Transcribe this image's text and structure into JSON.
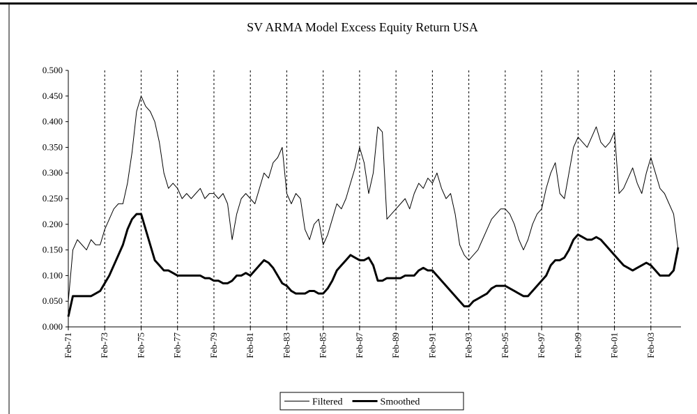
{
  "chart_data": {
    "type": "line",
    "title": "SV ARMA Model Excess Equity Return USA",
    "categories": [
      "Feb-71",
      null,
      null,
      null,
      null,
      null,
      null,
      null,
      "Feb-73",
      null,
      null,
      null,
      null,
      null,
      null,
      null,
      "Feb-75",
      null,
      null,
      null,
      null,
      null,
      null,
      null,
      "Feb-77",
      null,
      null,
      null,
      null,
      null,
      null,
      null,
      "Feb-79",
      null,
      null,
      null,
      null,
      null,
      null,
      null,
      "Feb-81",
      null,
      null,
      null,
      null,
      null,
      null,
      null,
      "Feb-83",
      null,
      null,
      null,
      null,
      null,
      null,
      null,
      "Feb-85",
      null,
      null,
      null,
      null,
      null,
      null,
      null,
      "Feb-87",
      null,
      null,
      null,
      null,
      null,
      null,
      null,
      "Feb-89",
      null,
      null,
      null,
      null,
      null,
      null,
      null,
      "Feb-91",
      null,
      null,
      null,
      null,
      null,
      null,
      null,
      "Feb-93",
      null,
      null,
      null,
      null,
      null,
      null,
      null,
      "Feb-95",
      null,
      null,
      null,
      null,
      null,
      null,
      null,
      "Feb-97",
      null,
      null,
      null,
      null,
      null,
      null,
      null,
      "Feb-99",
      null,
      null,
      null,
      null,
      null,
      null,
      null,
      "Feb-01",
      null,
      null,
      null,
      null,
      null,
      null,
      null,
      "Feb-03",
      null,
      null,
      null,
      null,
      null,
      null
    ],
    "series": [
      {
        "name": "Filtered",
        "color": "#000000",
        "width": 1,
        "values": [
          0.05,
          0.15,
          0.17,
          0.16,
          0.15,
          0.17,
          0.16,
          0.16,
          0.19,
          0.21,
          0.23,
          0.24,
          0.24,
          0.28,
          0.34,
          0.42,
          0.45,
          0.43,
          0.42,
          0.4,
          0.36,
          0.3,
          0.27,
          0.28,
          0.27,
          0.25,
          0.26,
          0.25,
          0.26,
          0.27,
          0.25,
          0.26,
          0.26,
          0.25,
          0.26,
          0.24,
          0.17,
          0.22,
          0.25,
          0.26,
          0.25,
          0.24,
          0.27,
          0.3,
          0.29,
          0.32,
          0.33,
          0.35,
          0.26,
          0.24,
          0.26,
          0.25,
          0.19,
          0.17,
          0.2,
          0.21,
          0.16,
          0.18,
          0.21,
          0.24,
          0.23,
          0.25,
          0.28,
          0.31,
          0.35,
          0.32,
          0.26,
          0.3,
          0.39,
          0.38,
          0.21,
          0.22,
          0.23,
          0.24,
          0.25,
          0.23,
          0.26,
          0.28,
          0.27,
          0.29,
          0.28,
          0.3,
          0.27,
          0.25,
          0.26,
          0.22,
          0.16,
          0.14,
          0.13,
          0.14,
          0.15,
          0.17,
          0.19,
          0.21,
          0.22,
          0.23,
          0.23,
          0.22,
          0.2,
          0.17,
          0.15,
          0.17,
          0.2,
          0.22,
          0.23,
          0.27,
          0.3,
          0.32,
          0.26,
          0.25,
          0.3,
          0.35,
          0.37,
          0.36,
          0.35,
          0.37,
          0.39,
          0.36,
          0.35,
          0.36,
          0.38,
          0.26,
          0.27,
          0.29,
          0.31,
          0.28,
          0.26,
          0.3,
          0.33,
          0.3,
          0.27,
          0.26,
          0.24,
          0.22,
          0.15
        ]
      },
      {
        "name": "Smoothed",
        "color": "#000000",
        "width": 3,
        "values": [
          0.02,
          0.06,
          0.06,
          0.06,
          0.06,
          0.06,
          0.065,
          0.07,
          0.085,
          0.1,
          0.12,
          0.14,
          0.16,
          0.19,
          0.21,
          0.22,
          0.22,
          0.19,
          0.16,
          0.13,
          0.12,
          0.11,
          0.11,
          0.105,
          0.1,
          0.1,
          0.1,
          0.1,
          0.1,
          0.1,
          0.095,
          0.095,
          0.09,
          0.09,
          0.085,
          0.085,
          0.09,
          0.1,
          0.1,
          0.105,
          0.1,
          0.11,
          0.12,
          0.13,
          0.125,
          0.115,
          0.1,
          0.085,
          0.08,
          0.07,
          0.065,
          0.065,
          0.065,
          0.07,
          0.07,
          0.065,
          0.065,
          0.075,
          0.09,
          0.11,
          0.12,
          0.13,
          0.14,
          0.135,
          0.13,
          0.13,
          0.135,
          0.12,
          0.09,
          0.09,
          0.095,
          0.095,
          0.095,
          0.095,
          0.1,
          0.1,
          0.1,
          0.11,
          0.115,
          0.11,
          0.11,
          0.1,
          0.09,
          0.08,
          0.07,
          0.06,
          0.05,
          0.04,
          0.04,
          0.05,
          0.055,
          0.06,
          0.065,
          0.075,
          0.08,
          0.08,
          0.08,
          0.075,
          0.07,
          0.065,
          0.06,
          0.06,
          0.07,
          0.08,
          0.09,
          0.1,
          0.12,
          0.13,
          0.13,
          0.135,
          0.15,
          0.17,
          0.18,
          0.175,
          0.17,
          0.17,
          0.175,
          0.17,
          0.16,
          0.15,
          0.14,
          0.13,
          0.12,
          0.115,
          0.11,
          0.115,
          0.12,
          0.125,
          0.12,
          0.11,
          0.1,
          0.1,
          0.1,
          0.11,
          0.155
        ]
      }
    ],
    "ylim": [
      0,
      0.5
    ],
    "yticks": [
      {
        "value": 0,
        "label": "0.000"
      },
      {
        "value": 0.05,
        "label": "0.050"
      },
      {
        "value": 0.1,
        "label": "0.100"
      },
      {
        "value": 0.15,
        "label": "0.150"
      },
      {
        "value": 0.2,
        "label": "0.200"
      },
      {
        "value": 0.25,
        "label": "0.250"
      },
      {
        "value": 0.3,
        "label": "0.300"
      },
      {
        "value": 0.35,
        "label": "0.350"
      },
      {
        "value": 0.4,
        "label": "0.400"
      },
      {
        "value": 0.45,
        "label": "0.450"
      },
      {
        "value": 0.5,
        "label": "0.500"
      }
    ],
    "x_grid": "dashed",
    "legend": "bottom"
  }
}
